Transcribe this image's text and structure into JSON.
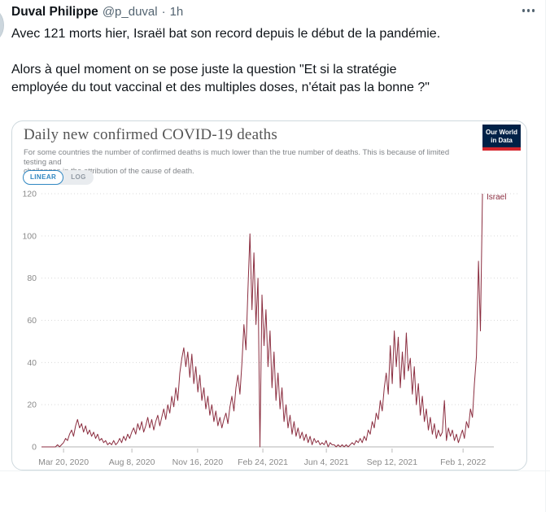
{
  "tweet": {
    "author": "Duval Philippe",
    "handle": "@p_duval",
    "dot": "·",
    "time": "1h",
    "p1": "Avec 121 morts hier, Israël bat son record depuis le début de la pandémie.",
    "p2_line1": "Alors à quel moment on se pose juste la question \"Et si la stratégie",
    "p2_line2": "employée du tout vaccinal et des multiples doses, n'était pas la bonne ?\""
  },
  "owid": {
    "title": "Daily new confirmed COVID-19 deaths",
    "subtitle_line1": "For some countries the number of confirmed deaths is much lower than the true number of deaths. This is because of limited testing and",
    "subtitle_line2": "challenges in the attribution of the cause of death.",
    "logo_line1": "Our World",
    "logo_line2": "in Data",
    "toggle_linear": "LINEAR",
    "toggle_log": "LOG",
    "active_scale": "LINEAR"
  },
  "colors": {
    "line": "#8b2e40",
    "accent_blue": "#3087c2",
    "logo_navy": "#002147",
    "logo_red": "#d6252d",
    "grid": "#d9d9d9",
    "axis": "#b3b3b3",
    "tick_text": "#8a8a8a",
    "text_dark": "#0f1419",
    "text_gray": "#536471"
  },
  "chart_data": {
    "type": "line",
    "title": "Daily new confirmed COVID-19 deaths",
    "xlabel": "",
    "ylabel": "",
    "ylim": [
      0,
      120
    ],
    "y_ticks": [
      0,
      20,
      40,
      60,
      80,
      100,
      120
    ],
    "x_tick_labels": [
      "Mar 20, 2020",
      "Aug 8, 2020",
      "Nov 16, 2020",
      "Feb 24, 2021",
      "Jun 4, 2021",
      "Sep 12, 2021",
      "Feb 1, 2022"
    ],
    "x_tick_positions": [
      0.05,
      0.205,
      0.354,
      0.502,
      0.646,
      0.795,
      0.956
    ],
    "x_range": [
      "Feb 2020",
      "Feb 2022"
    ],
    "grid": "dotted-horizontal",
    "legend_position": "end-of-line",
    "end_label": "Israel",
    "series": [
      {
        "name": "Israel",
        "color": "#8b2e40",
        "values": [
          0,
          0,
          0,
          0,
          0,
          0,
          0,
          0,
          1,
          0,
          1,
          2,
          4,
          3,
          6,
          8,
          5,
          10,
          13,
          9,
          11,
          7,
          10,
          6,
          8,
          5,
          7,
          4,
          6,
          3,
          4,
          2,
          3,
          1,
          2,
          1,
          3,
          1,
          2,
          4,
          2,
          5,
          3,
          6,
          4,
          7,
          9,
          6,
          11,
          8,
          12,
          7,
          10,
          14,
          9,
          13,
          8,
          12,
          15,
          10,
          14,
          18,
          13,
          20,
          16,
          24,
          19,
          28,
          22,
          35,
          42,
          47,
          38,
          45,
          33,
          44,
          30,
          38,
          26,
          34,
          22,
          28,
          18,
          24,
          15,
          20,
          12,
          17,
          10,
          14,
          9,
          13,
          16,
          11,
          19,
          24,
          17,
          28,
          34,
          25,
          40,
          58,
          46,
          75,
          101,
          65,
          92,
          58,
          80,
          0,
          72,
          48,
          65,
          38,
          55,
          28,
          45,
          22,
          35,
          18,
          28,
          12,
          20,
          9,
          15,
          6,
          12,
          5,
          9,
          4,
          7,
          3,
          6,
          2,
          5,
          1,
          4,
          2,
          3,
          1,
          2,
          1,
          3,
          0,
          2,
          1,
          1,
          0,
          1,
          0,
          1,
          0,
          1,
          0,
          1,
          2,
          1,
          3,
          2,
          4,
          2,
          5,
          3,
          8,
          6,
          12,
          9,
          16,
          13,
          22,
          17,
          28,
          35,
          25,
          48,
          30,
          55,
          38,
          52,
          28,
          45,
          32,
          54,
          36,
          42,
          25,
          38,
          20,
          30,
          15,
          24,
          12,
          18,
          8,
          14,
          6,
          11,
          4,
          8,
          5,
          7,
          22,
          3,
          9,
          5,
          8,
          3,
          6,
          2,
          5,
          8,
          4,
          12,
          9,
          18,
          14,
          30,
          43,
          88,
          55,
          120
        ]
      }
    ]
  }
}
